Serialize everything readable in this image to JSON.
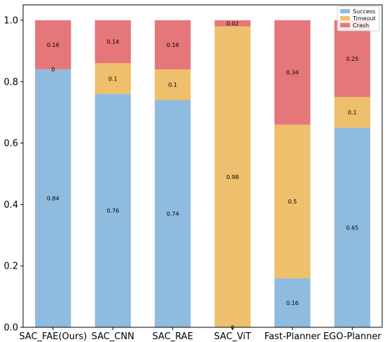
{
  "chart_data": {
    "type": "bar",
    "stacked": true,
    "categories": [
      "SAC_FAE(Ours)",
      "SAC_CNN",
      "SAC_RAE",
      "SAC_ViT",
      "Fast-Planner",
      "EGO-Planner"
    ],
    "series": [
      {
        "name": "Success",
        "color": "#8fbbde",
        "values": [
          0.84,
          0.76,
          0.74,
          0,
          0.16,
          0.65
        ],
        "labels": [
          "0.84",
          "0.76",
          "0.74",
          "0",
          "0.16",
          "0.65"
        ]
      },
      {
        "name": "Timeout",
        "color": "#eebf6c",
        "values": [
          0,
          0.1,
          0.1,
          0.98,
          0.5,
          0.1
        ],
        "labels": [
          "0",
          "0.1",
          "0.1",
          "0.98",
          "0.5",
          "0.1"
        ]
      },
      {
        "name": "Crash",
        "color": "#e57679",
        "values": [
          0.16,
          0.14,
          0.16,
          0.02,
          0.34,
          0.25
        ],
        "labels": [
          "0.16",
          "0.14",
          "0.16",
          "0.02",
          "0.34",
          "0.25"
        ]
      }
    ],
    "ylim": [
      0,
      1.05
    ],
    "yticks": [
      "0.0",
      "0.2",
      "0.4",
      "0.6",
      "0.8",
      "1.0"
    ],
    "legend": "top-right",
    "grid": false
  }
}
